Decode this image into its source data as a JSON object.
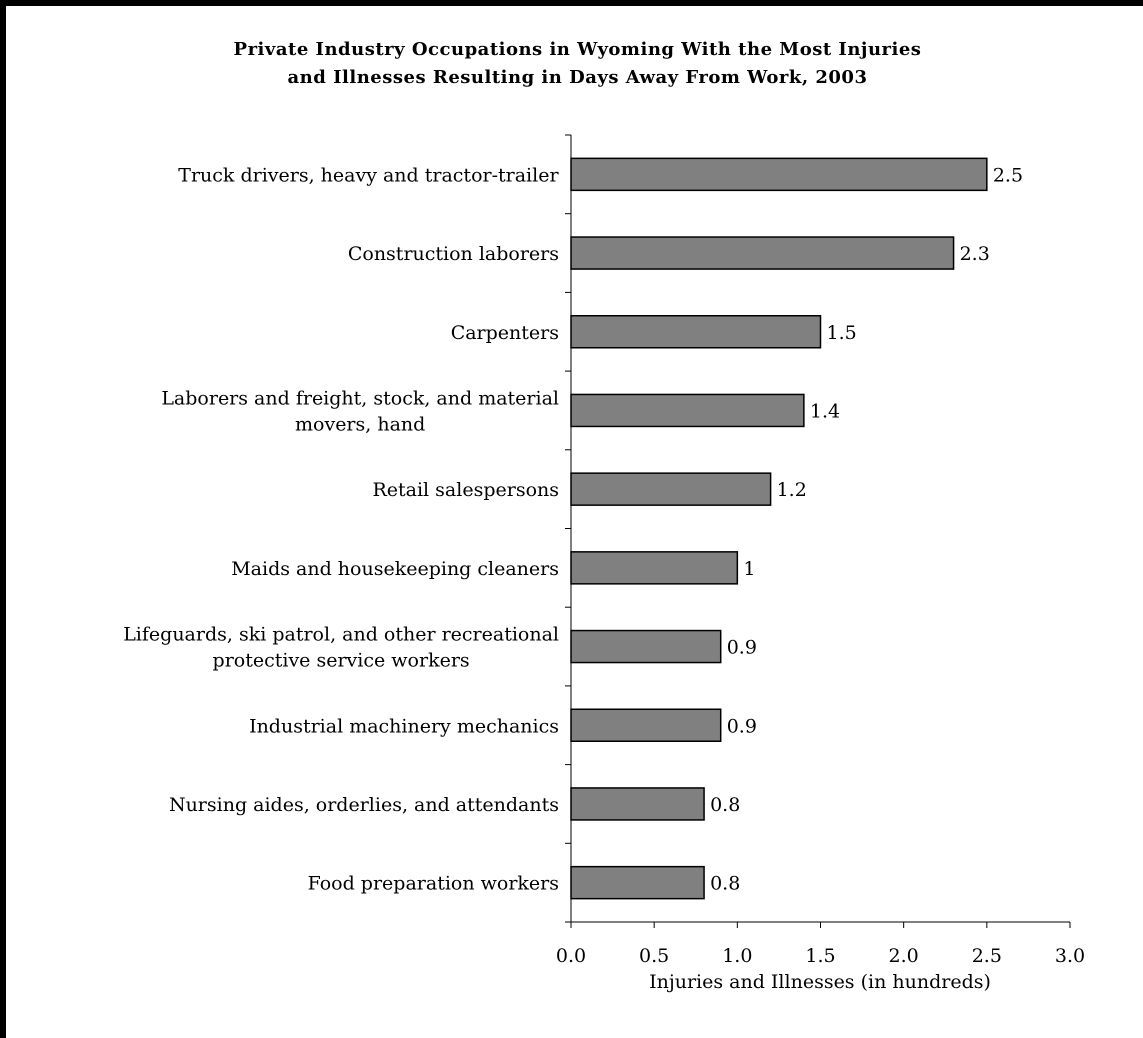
{
  "chart_data": {
    "type": "bar",
    "orientation": "horizontal",
    "title_lines": [
      "Private Industry Occupations in Wyoming With the Most Injuries",
      "and Illnesses Resulting in Days Away From Work, 2003"
    ],
    "xlabel": "Injuries and Illnesses (in hundreds)",
    "ylabel": "",
    "xlim": [
      0,
      3.0
    ],
    "xticks": [
      "0.0",
      "0.5",
      "1.0",
      "1.5",
      "2.0",
      "2.5",
      "3.0"
    ],
    "grid": false,
    "legend": "none",
    "bar_color": "#808080",
    "categories": [
      [
        "Truck drivers, heavy and tractor-trailer"
      ],
      [
        "Construction laborers"
      ],
      [
        "Carpenters"
      ],
      [
        "Laborers and freight, stock, and material",
        "movers, hand"
      ],
      [
        "Retail salespersons"
      ],
      [
        "Maids and housekeeping cleaners"
      ],
      [
        "Lifeguards, ski patrol, and other recreational",
        "protective service workers"
      ],
      [
        "Industrial machinery mechanics"
      ],
      [
        "Nursing aides, orderlies, and attendants"
      ],
      [
        "Food preparation workers"
      ]
    ],
    "values": [
      2.5,
      2.3,
      1.5,
      1.4,
      1.2,
      1.0,
      0.9,
      0.9,
      0.8,
      0.8
    ],
    "value_labels": [
      "2.5",
      "2.3",
      "1.5",
      "1.4",
      "1.2",
      "1",
      "0.9",
      "0.9",
      "0.8",
      "0.8"
    ]
  }
}
